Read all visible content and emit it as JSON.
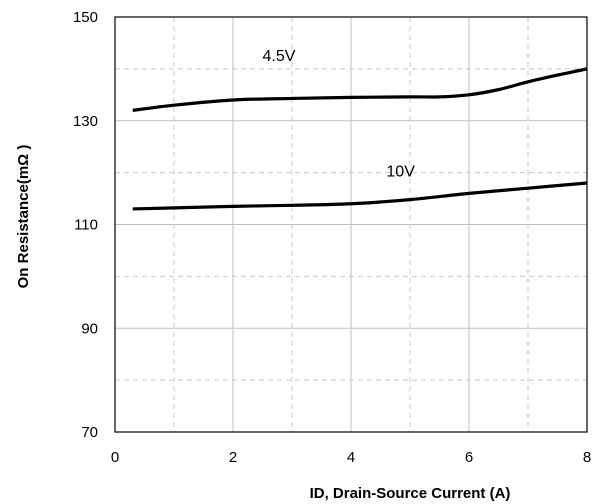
{
  "chart_data": {
    "type": "line",
    "title": "",
    "xlabel": "ID, Drain-Source Current (A)",
    "ylabel": "On Resistance(mΩ )",
    "xlim": [
      0,
      8
    ],
    "ylim": [
      70,
      150
    ],
    "x_ticks": [
      0,
      2,
      4,
      6,
      8
    ],
    "y_ticks": [
      70,
      90,
      110,
      130,
      150
    ],
    "x_minor_grid": [
      1,
      3,
      5,
      7
    ],
    "y_minor_grid": [
      80,
      100,
      120,
      140
    ],
    "grid": true,
    "series": [
      {
        "name": "4.5V",
        "x": [
          0.3,
          1,
          2,
          3,
          4,
          5,
          5.5,
          6,
          6.5,
          7,
          7.5,
          8
        ],
        "y": [
          132,
          133,
          134,
          134.3,
          134.5,
          134.6,
          134.6,
          135,
          136,
          137.5,
          138.8,
          140
        ]
      },
      {
        "name": "10V",
        "x": [
          0.3,
          1,
          2,
          3,
          4,
          5,
          6,
          7,
          8
        ],
        "y": [
          113,
          113.2,
          113.5,
          113.7,
          114,
          114.8,
          116,
          117,
          118
        ]
      }
    ],
    "colors": {
      "line": "#000000",
      "major_grid": "#bfbfbf",
      "minor_grid": "#c8c8c8",
      "frame": "#000000"
    }
  }
}
